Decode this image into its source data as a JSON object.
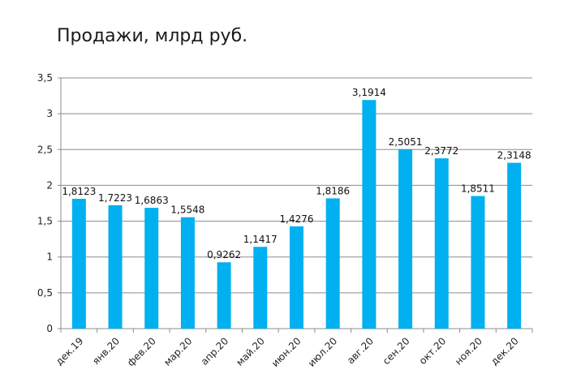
{
  "chart_data": {
    "type": "bar",
    "title": "Продажи, млрд руб.",
    "categories": [
      "дек.19",
      "янв.20",
      "фев.20",
      "мар.20",
      "апр.20",
      "май.20",
      "июн.20",
      "июл.20",
      "авг.20",
      "сен.20",
      "окт.20",
      "ноя.20",
      "дек.20"
    ],
    "values": [
      1.8123,
      1.7223,
      1.6863,
      1.5548,
      0.9262,
      1.1417,
      1.4276,
      1.8186,
      3.1914,
      2.5051,
      2.3772,
      1.8511,
      2.3148
    ],
    "value_labels": [
      "1,8123",
      "1,7223",
      "1,6863",
      "1,5548",
      "0,9262",
      "1,1417",
      "1,4276",
      "1,8186",
      "3,1914",
      "2,5051",
      "2,3772",
      "1,8511",
      "2,3148"
    ],
    "yticks": [
      0,
      0.5,
      1,
      1.5,
      2,
      2.5,
      3,
      3.5
    ],
    "ytick_labels": [
      "0",
      "0,5",
      "1",
      "1,5",
      "2",
      "2,5",
      "3",
      "3,5"
    ],
    "ylim": [
      0,
      3.5
    ],
    "xlabel": "",
    "ylabel": "",
    "grid": true,
    "legend": "none",
    "bar_color": "#00b0f0",
    "grid_color": "#8c8c8c"
  }
}
